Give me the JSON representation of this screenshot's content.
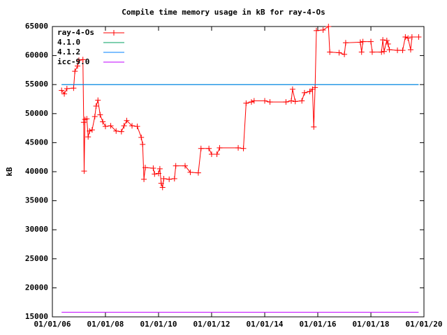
{
  "chart_data": {
    "type": "line",
    "title": "Compile time memory usage in kB for ray-4-Os",
    "y_label": "kB",
    "xlim": [
      "2006-01-01",
      "2020-01-01"
    ],
    "xticks": [
      {
        "value": "2006-01-01",
        "label": "01/01/06"
      },
      {
        "value": "2008-01-01",
        "label": "01/01/08"
      },
      {
        "value": "2010-01-01",
        "label": "01/01/10"
      },
      {
        "value": "2012-01-01",
        "label": "01/01/12"
      },
      {
        "value": "2014-01-01",
        "label": "01/01/14"
      },
      {
        "value": "2016-01-01",
        "label": "01/01/16"
      },
      {
        "value": "2018-01-01",
        "label": "01/01/18"
      },
      {
        "value": "2020-01-01",
        "label": "01/01/20"
      }
    ],
    "ylim": [
      15000,
      65000
    ],
    "yticks": [
      15000,
      20000,
      25000,
      30000,
      35000,
      40000,
      45000,
      50000,
      55000,
      60000,
      65000
    ],
    "grid": false,
    "legend": "top-left",
    "series": [
      {
        "name": "ray-4-Os",
        "color": "#ff0000",
        "marker": "+",
        "x": [
          "2006-05-08",
          "2006-06-14",
          "2006-07-20",
          "2006-10-20",
          "2006-11-07",
          "2006-12-13",
          "2007-01-01",
          "2007-02-25",
          "2007-03-08",
          "2007-03-14",
          "2007-03-25",
          "2007-04-20",
          "2007-05-08",
          "2007-05-27",
          "2007-07-02",
          "2007-08-08",
          "2007-08-26",
          "2007-09-20",
          "2007-10-20",
          "2007-11-25",
          "2008-01-01",
          "2008-03-14",
          "2008-05-27",
          "2008-08-08",
          "2008-09-13",
          "2008-10-20",
          "2009-01-01",
          "2009-03-14",
          "2009-05-08",
          "2009-05-27",
          "2009-06-14",
          "2009-07-02",
          "2009-10-20",
          "2009-11-07",
          "2010-01-01",
          "2010-01-19",
          "2010-02-06",
          "2010-02-25",
          "2010-03-14",
          "2010-05-27",
          "2010-08-08",
          "2010-08-26",
          "2011-01-01",
          "2011-03-14",
          "2011-07-02",
          "2011-08-08",
          "2011-11-25",
          "2012-01-01",
          "2012-03-14",
          "2012-04-20",
          "2013-01-01",
          "2013-03-14",
          "2013-04-20",
          "2013-07-02",
          "2013-08-08",
          "2014-01-01",
          "2014-03-14",
          "2014-10-20",
          "2015-01-01",
          "2015-01-19",
          "2015-02-25",
          "2015-05-27",
          "2015-07-02",
          "2015-09-13",
          "2015-10-20",
          "2015-11-07",
          "2015-11-25",
          "2015-12-13",
          "2016-03-14",
          "2016-05-27",
          "2016-06-14",
          "2016-10-20",
          "2017-01-01",
          "2017-01-19",
          "2017-08-08",
          "2017-08-26",
          "2017-09-13",
          "2018-01-01",
          "2018-01-19",
          "2018-05-27",
          "2018-06-14",
          "2018-07-02",
          "2018-08-08",
          "2018-08-26",
          "2018-09-13",
          "2019-01-01",
          "2019-03-14",
          "2019-04-20",
          "2019-05-27",
          "2019-07-02",
          "2019-07-20",
          "2019-10-20"
        ],
        "values": [
          54000,
          53400,
          54300,
          54400,
          57300,
          58200,
          59200,
          59300,
          48500,
          40100,
          49000,
          49100,
          46000,
          47000,
          47200,
          49500,
          51300,
          52300,
          49800,
          48600,
          47800,
          47900,
          47000,
          46900,
          47900,
          48800,
          47900,
          47800,
          45900,
          44700,
          38700,
          40700,
          40600,
          39600,
          39700,
          40500,
          38000,
          37300,
          38800,
          38700,
          38800,
          41000,
          41000,
          39900,
          39800,
          44000,
          44000,
          43000,
          43000,
          44100,
          44100,
          44000,
          51800,
          52000,
          52200,
          52200,
          52000,
          52000,
          52200,
          54200,
          52100,
          52200,
          53600,
          53800,
          54200,
          47700,
          54500,
          64300,
          64400,
          65000,
          60600,
          60500,
          60200,
          62200,
          62300,
          60600,
          62400,
          62400,
          60600,
          60600,
          62700,
          60700,
          62600,
          62000,
          61000,
          60900,
          60900,
          63200,
          63000,
          61000,
          63200,
          63200
        ]
      },
      {
        "name": "4.1.0",
        "color": "#00a060",
        "x": [
          "2006-05-08",
          "2019-10-20"
        ],
        "values": [
          55000,
          55000
        ]
      },
      {
        "name": "4.1.2",
        "color": "#0080ff",
        "x": [
          "2006-05-08",
          "2019-10-20"
        ],
        "values": [
          55000,
          55000
        ]
      },
      {
        "name": "icc-9.0",
        "color": "#c000ff",
        "x": [
          "2006-05-08",
          "2019-10-20"
        ],
        "values": [
          15800,
          15800
        ]
      }
    ]
  }
}
